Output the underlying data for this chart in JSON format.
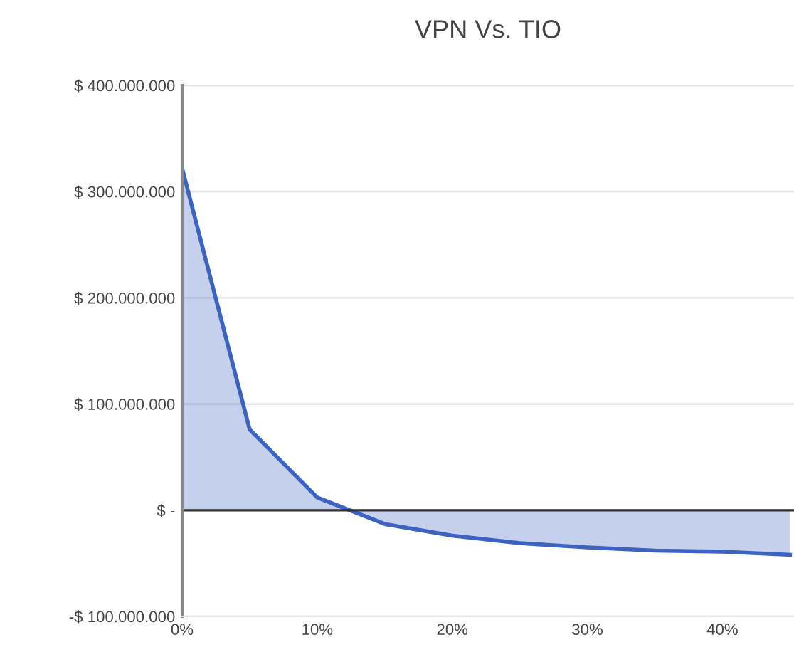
{
  "chart_data": {
    "type": "area",
    "title": "VPN Vs. TIO",
    "x": [
      0,
      5,
      10,
      15,
      20,
      25,
      30,
      35,
      40,
      45
    ],
    "series": [
      {
        "color": "#3c63c0",
        "values": [
          322000000,
          76000000,
          12000000,
          -13000000,
          -24000000,
          -31000000,
          -35000000,
          -38000000,
          -39000000,
          -42000000
        ]
      }
    ],
    "xlim": [
      0,
      45.3
    ],
    "xticks": [
      {
        "value": 0,
        "label": "0%"
      },
      {
        "value": 10,
        "label": "10%"
      },
      {
        "value": 20,
        "label": "20%"
      },
      {
        "value": 30,
        "label": "30%"
      },
      {
        "value": 40,
        "label": "40%"
      }
    ],
    "ylim": [
      -100000000,
      400000000
    ],
    "yticks": [
      {
        "value": -100000000,
        "label": "-$ 100.000.000"
      },
      {
        "value": 0,
        "label": "$ -"
      },
      {
        "value": 100000000,
        "label": "$ 100.000.000"
      },
      {
        "value": 200000000,
        "label": "$ 200.000.000"
      },
      {
        "value": 300000000,
        "label": "$ 300.000.000"
      },
      {
        "value": 400000000,
        "label": "$ 400.000.000"
      }
    ],
    "ref_lines": [
      {
        "axis": "y",
        "value": 0,
        "color": "#333333"
      }
    ],
    "grid": "y",
    "legend": false
  }
}
